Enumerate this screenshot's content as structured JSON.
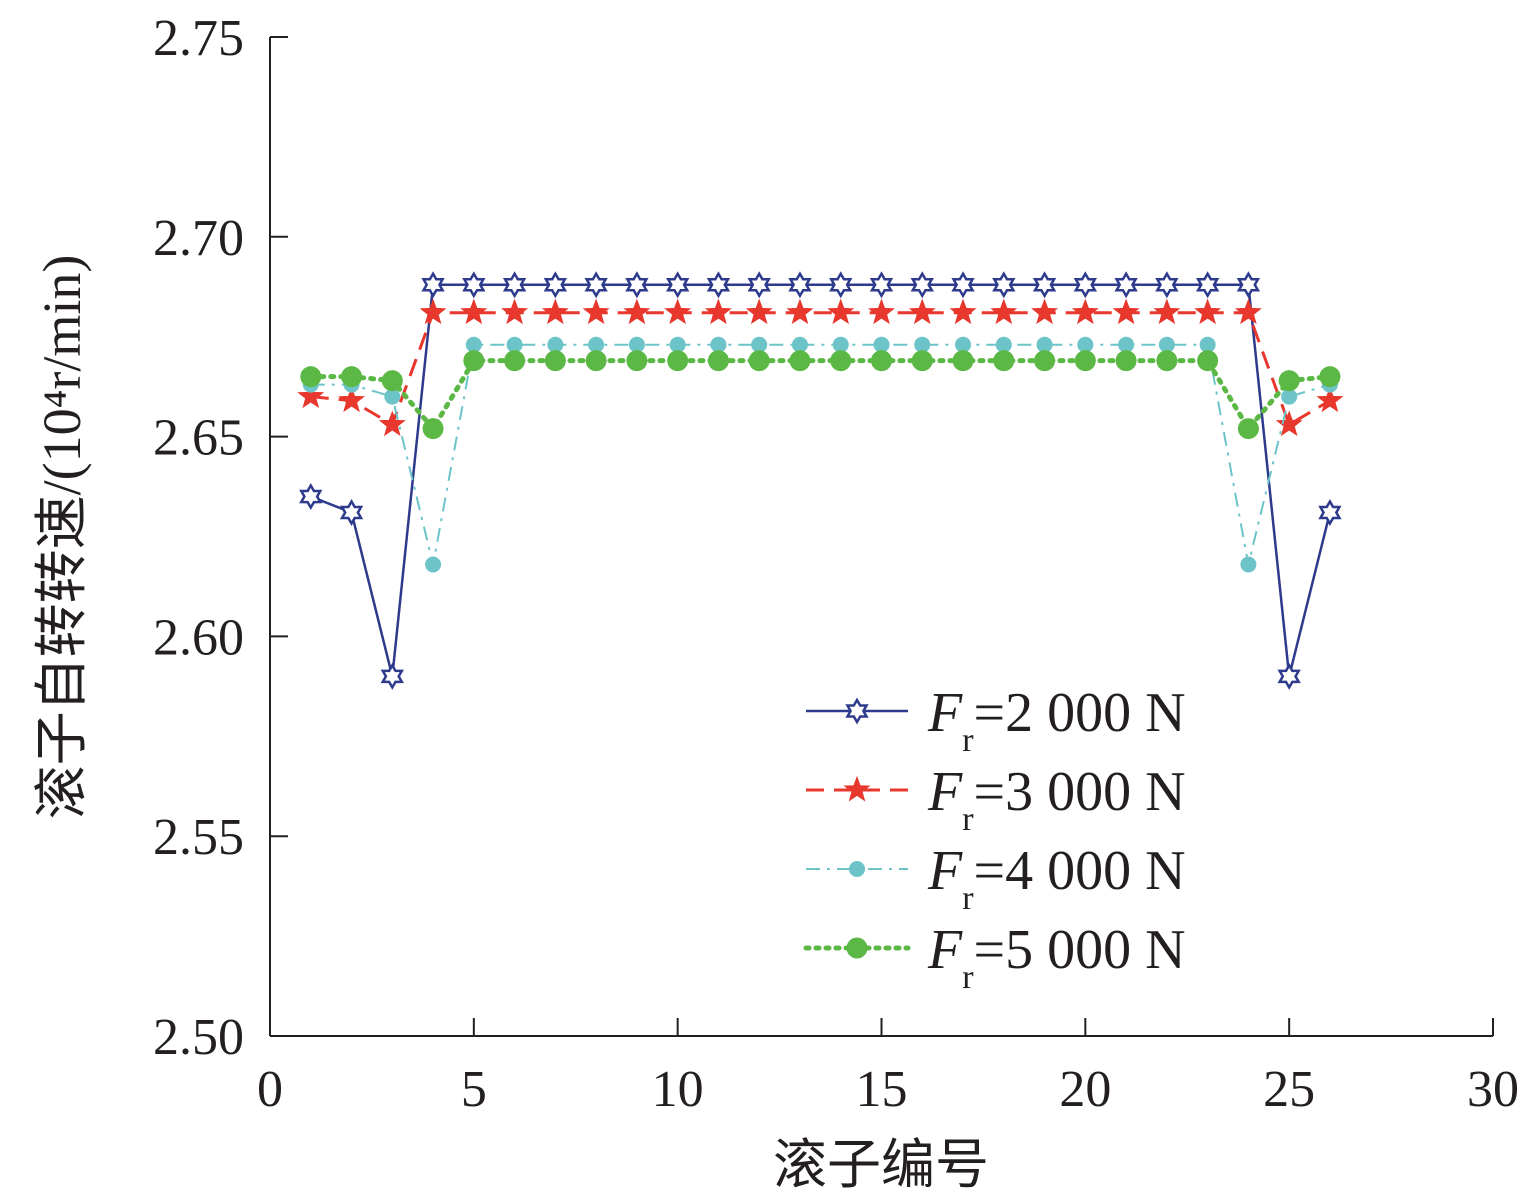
{
  "chart_data": {
    "type": "line",
    "xlabel": "滚子编号",
    "ylabel": "滚子自转转速/(10⁴r/min)",
    "xlim": [
      0,
      30
    ],
    "ylim": [
      2.5,
      2.75
    ],
    "x_ticks": [
      "0",
      "5",
      "10",
      "15",
      "20",
      "25",
      "30"
    ],
    "y_ticks": [
      "2.50",
      "2.55",
      "2.60",
      "2.65",
      "2.70",
      "2.75"
    ],
    "grid": false,
    "legend_position": "bottom-right",
    "x": [
      1,
      2,
      3,
      4,
      5,
      6,
      7,
      8,
      9,
      10,
      11,
      12,
      13,
      14,
      15,
      16,
      17,
      18,
      19,
      20,
      21,
      22,
      23,
      24,
      25,
      26
    ],
    "series": [
      {
        "name": "Fr=2 000 N",
        "legend_prefix": "F",
        "legend_sub": "r",
        "legend_suffix": "=2 000 N",
        "color": "#2e3a8c",
        "line_style": "solid",
        "marker": "hexagram-open",
        "values": [
          2.635,
          2.631,
          2.59,
          2.688,
          2.688,
          2.688,
          2.688,
          2.688,
          2.688,
          2.688,
          2.688,
          2.688,
          2.688,
          2.688,
          2.688,
          2.688,
          2.688,
          2.688,
          2.688,
          2.688,
          2.688,
          2.688,
          2.688,
          2.688,
          2.59,
          2.631
        ]
      },
      {
        "name": "Fr=3 000 N",
        "legend_prefix": "F",
        "legend_sub": "r",
        "legend_suffix": "=3 000 N",
        "color": "#e8372c",
        "line_style": "dashed",
        "marker": "star-filled",
        "values": [
          2.66,
          2.659,
          2.653,
          2.681,
          2.681,
          2.681,
          2.681,
          2.681,
          2.681,
          2.681,
          2.681,
          2.681,
          2.681,
          2.681,
          2.681,
          2.681,
          2.681,
          2.681,
          2.681,
          2.681,
          2.681,
          2.681,
          2.681,
          2.681,
          2.653,
          2.659
        ]
      },
      {
        "name": "Fr=4 000 N",
        "legend_prefix": "F",
        "legend_sub": "r",
        "legend_suffix": "=4 000 N",
        "color": "#6cc4c9",
        "line_style": "dashdot",
        "marker": "circle-small",
        "values": [
          2.663,
          2.663,
          2.66,
          2.618,
          2.673,
          2.673,
          2.673,
          2.673,
          2.673,
          2.673,
          2.673,
          2.673,
          2.673,
          2.673,
          2.673,
          2.673,
          2.673,
          2.673,
          2.673,
          2.673,
          2.673,
          2.673,
          2.673,
          2.618,
          2.66,
          2.663
        ]
      },
      {
        "name": "Fr=5 000 N",
        "legend_prefix": "F",
        "legend_sub": "r",
        "legend_suffix": "=5 000 N",
        "color": "#5cb845",
        "line_style": "dotted",
        "marker": "circle-large",
        "values": [
          2.665,
          2.665,
          2.664,
          2.652,
          2.669,
          2.669,
          2.669,
          2.669,
          2.669,
          2.669,
          2.669,
          2.669,
          2.669,
          2.669,
          2.669,
          2.669,
          2.669,
          2.669,
          2.669,
          2.669,
          2.669,
          2.669,
          2.669,
          2.652,
          2.664,
          2.665
        ]
      }
    ]
  }
}
